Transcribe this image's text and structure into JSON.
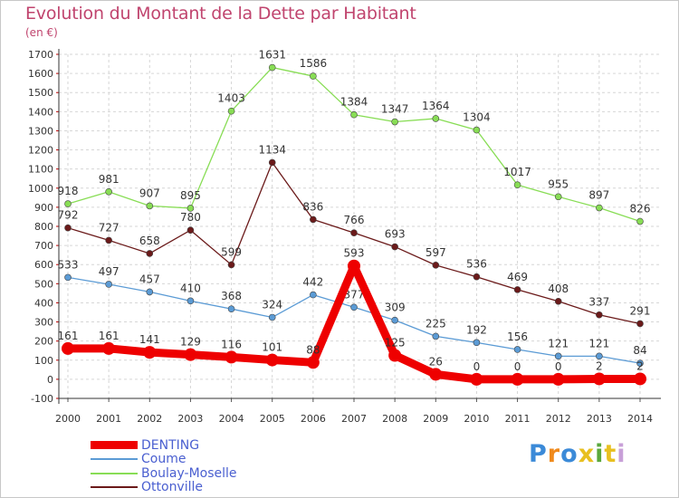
{
  "chart_data": {
    "type": "line",
    "title": "Evolution du Montant de la Dette par Habitant",
    "subtitle": "(en €)",
    "xlabel": "",
    "ylabel": "",
    "x": [
      "2000",
      "2001",
      "2002",
      "2003",
      "2004",
      "2005",
      "2006",
      "2007",
      "2008",
      "2009",
      "2010",
      "2011",
      "2012",
      "2013",
      "2014"
    ],
    "ylim": [
      -100,
      1700
    ],
    "yticks": [
      -100,
      0,
      100,
      200,
      300,
      400,
      500,
      600,
      700,
      800,
      900,
      1000,
      1100,
      1200,
      1300,
      1400,
      1500,
      1600,
      1700
    ],
    "legend_position": "bottom-left",
    "series": [
      {
        "name": "Ottonville",
        "color": "#6b1a1a",
        "style": "thin",
        "values": [
          792,
          727,
          658,
          780,
          599,
          1134,
          836,
          766,
          693,
          597,
          536,
          469,
          408,
          337,
          291
        ],
        "labels": [
          "792",
          "727",
          "658",
          "780",
          "599",
          "1134",
          "836",
          "766",
          "693",
          "597",
          "536",
          "469",
          "408",
          "337",
          "291"
        ]
      },
      {
        "name": "Boulay-Moselle",
        "color": "#88dd55",
        "style": "thin",
        "values": [
          918,
          981,
          907,
          895,
          1403,
          1631,
          1586,
          1384,
          1347,
          1364,
          1304,
          1017,
          955,
          897,
          826
        ],
        "labels": [
          "918",
          "981",
          "907",
          "895",
          "1403",
          "1631",
          "1586",
          "1384",
          "1347",
          "1364",
          "1304",
          "1017",
          "955",
          "897",
          "826"
        ]
      },
      {
        "name": "Coume",
        "color": "#5b9bd5",
        "style": "thin",
        "values": [
          533,
          497,
          457,
          410,
          368,
          324,
          442,
          377,
          309,
          225,
          192,
          156,
          121,
          121,
          84
        ],
        "labels": [
          "533",
          "497",
          "457",
          "410",
          "368",
          "324",
          "442",
          "377",
          "309",
          "225",
          "192",
          "156",
          "121",
          "121",
          "84"
        ]
      },
      {
        "name": "DENTING",
        "color": "#ee0000",
        "style": "thick",
        "values": [
          161,
          161,
          141,
          129,
          116,
          101,
          88,
          593,
          125,
          26,
          0,
          0,
          0,
          2,
          2
        ],
        "labels": [
          "161",
          "161",
          "141",
          "129",
          "116",
          "101",
          "88",
          "593",
          "125",
          "26",
          "0",
          "0",
          "0",
          "2",
          "2"
        ]
      }
    ],
    "legend_order": [
      "DENTING",
      "Coume",
      "Boulay-Moselle",
      "Ottonville"
    ]
  },
  "brand": {
    "logo_letters": [
      "P",
      "r",
      "o",
      "x",
      "i",
      "t",
      "i"
    ],
    "logo_colors": [
      "#3b8ad8",
      "#f08a1c",
      "#3b8ad8",
      "#e8c020",
      "#5aa83c",
      "#e8c020",
      "#c8a0d8"
    ]
  }
}
